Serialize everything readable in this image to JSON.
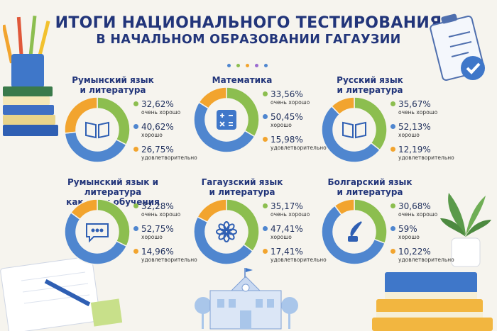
{
  "title_line1": "ИТОГИ НАЦИОНАЛЬНОГО ТЕСТИРОВАНИЯ",
  "title_line2": "В НАЧАЛЬНОМ ОБРАЗОВАНИИ ГАГАУЗИИ",
  "colors": {
    "very_good": "#8cbe4f",
    "good": "#4f86cf",
    "satisfactory": "#f2a42e",
    "title": "#22357a"
  },
  "chart_data": [
    {
      "type": "pie",
      "title": "Румынский язык\nи литература",
      "icon": "book-icon",
      "labels": [
        "очень хорошо",
        "хорошо",
        "удовлетворительно"
      ],
      "values": [
        32.62,
        40.62,
        26.75
      ],
      "value_labels": [
        "32,62%",
        "40,62%",
        "26,75%"
      ]
    },
    {
      "type": "pie",
      "title": "Математика",
      "icon": "calculator-icon",
      "labels": [
        "очень хорошо",
        "хорошо",
        "удовлетворительно"
      ],
      "values": [
        33.56,
        50.45,
        15.98
      ],
      "value_labels": [
        "33,56%",
        "50,45%",
        "15,98%"
      ]
    },
    {
      "type": "pie",
      "title": "Русский язык\nи литература",
      "icon": "book-icon",
      "labels": [
        "очень хорошо",
        "хорошо",
        "удовлетворительно"
      ],
      "values": [
        35.67,
        52.13,
        12.19
      ],
      "value_labels": [
        "35,67%",
        "52,13%",
        "12,19%"
      ]
    },
    {
      "type": "pie",
      "title": "Румынский язык и литература\nкак язык обучения",
      "icon": "chat-icon",
      "labels": [
        "очень хорошо",
        "хорошо",
        "удовлетворительно"
      ],
      "values": [
        32.28,
        52.75,
        14.96
      ],
      "value_labels": [
        "32,28%",
        "52,75%",
        "14,96%"
      ]
    },
    {
      "type": "pie",
      "title": "Гагаузский язык\nи литература",
      "icon": "flower-icon",
      "labels": [
        "очень хорошо",
        "хорошо",
        "удовлетворительно"
      ],
      "values": [
        35.17,
        47.41,
        17.41
      ],
      "value_labels": [
        "35,17%",
        "47,41%",
        "17,41%"
      ]
    },
    {
      "type": "pie",
      "title": "Болгарский язык\nи литература",
      "icon": "quill-icon",
      "labels": [
        "очень хорошо",
        "хорошо",
        "удовлетворительно"
      ],
      "values": [
        30.68,
        59,
        10.22
      ],
      "value_labels": [
        "30,68%",
        "59%",
        "10,22%"
      ]
    }
  ]
}
